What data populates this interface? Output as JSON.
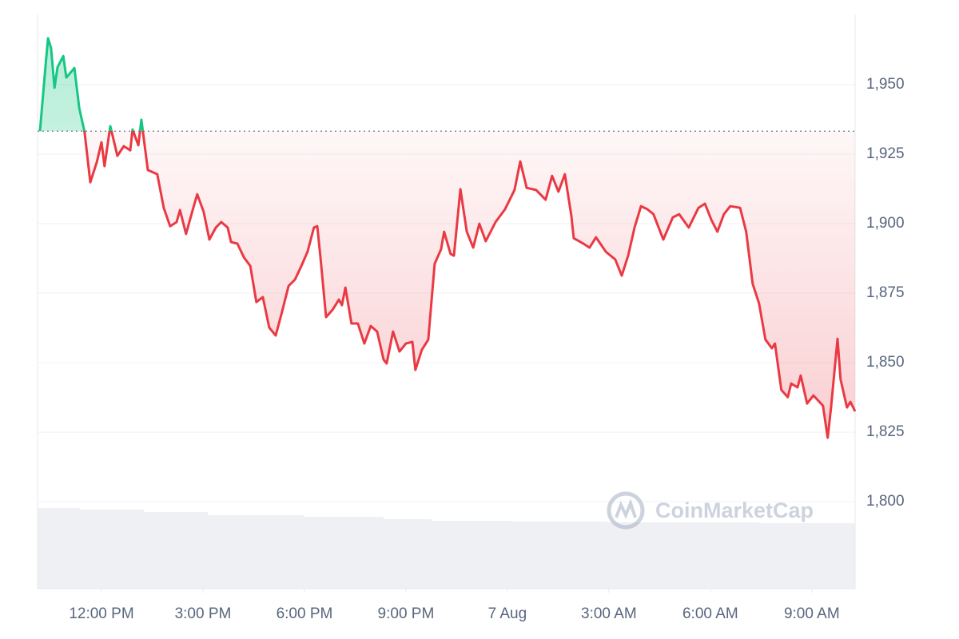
{
  "chart_data": {
    "type": "line",
    "watermark": "CoinMarketCap",
    "up_color": "#16c784",
    "down_color": "#ea3943",
    "baseline": 1933.3,
    "grid": true,
    "xlim": [
      -1.89,
      22.28
    ],
    "xticks": [
      {
        "value": 0,
        "label": "12:00 PM"
      },
      {
        "value": 3,
        "label": "3:00 PM"
      },
      {
        "value": 6,
        "label": "6:00 PM"
      },
      {
        "value": 9,
        "label": "9:00 PM"
      },
      {
        "value": 12,
        "label": "7 Aug"
      },
      {
        "value": 15,
        "label": "3:00 AM"
      },
      {
        "value": 18,
        "label": "6:00 AM"
      },
      {
        "value": 21,
        "label": "9:00 AM"
      }
    ],
    "ylim": [
      1768.7,
      1975.3
    ],
    "yticks": [
      {
        "value": 1800,
        "label": "1,800"
      },
      {
        "value": 1825,
        "label": "1,825"
      },
      {
        "value": 1850,
        "label": "1,850"
      },
      {
        "value": 1875,
        "label": "1,875"
      },
      {
        "value": 1900,
        "label": "1,900"
      },
      {
        "value": 1925,
        "label": "1,925"
      },
      {
        "value": 1950,
        "label": "1,950"
      }
    ],
    "x": [
      -1.82,
      -1.65,
      -1.58,
      -1.49,
      -1.39,
      -1.3,
      -1.13,
      -1.04,
      -0.8,
      -0.66,
      -0.5,
      -0.33,
      -0.14,
      0,
      0.09,
      0.26,
      0.47,
      0.66,
      0.85,
      0.92,
      1.09,
      1.18,
      1.37,
      1.65,
      1.84,
      2.03,
      2.22,
      2.32,
      2.5,
      2.69,
      2.83,
      3.02,
      3.19,
      3.38,
      3.54,
      3.73,
      3.83,
      4.02,
      4.21,
      4.4,
      4.58,
      4.77,
      4.96,
      5.15,
      5.34,
      5.53,
      5.72,
      5.91,
      6.09,
      6.28,
      6.38,
      6.47,
      6.64,
      6.83,
      7.02,
      7.11,
      7.21,
      7.39,
      7.58,
      7.77,
      7.96,
      8.15,
      8.34,
      8.43,
      8.62,
      8.81,
      9.0,
      9.19,
      9.28,
      9.47,
      9.66,
      9.85,
      10.04,
      10.13,
      10.32,
      10.42,
      10.61,
      10.8,
      10.99,
      11.17,
      11.36,
      11.65,
      11.93,
      12.21,
      12.38,
      12.57,
      12.85,
      13.13,
      13.32,
      13.51,
      13.7,
      13.89,
      13.96,
      14.25,
      14.43,
      14.62,
      14.91,
      15.19,
      15.38,
      15.57,
      15.76,
      15.95,
      16.14,
      16.32,
      16.61,
      16.89,
      17.08,
      17.36,
      17.65,
      17.84,
      18.03,
      18.21,
      18.4,
      18.59,
      18.88,
      19.06,
      19.25,
      19.44,
      19.63,
      19.82,
      19.91,
      20.1,
      20.29,
      20.39,
      20.58,
      20.67,
      20.86,
      21.05,
      21.33,
      21.47,
      21.57,
      21.76,
      21.85,
      22.04,
      22.14,
      22.28
    ],
    "values": [
      1933.3,
      1957.5,
      1966.7,
      1963.2,
      1948.9,
      1956.3,
      1960.3,
      1952.6,
      1956.0,
      1941.7,
      1933.0,
      1914.9,
      1922.1,
      1929.3,
      1920.7,
      1935.1,
      1924.4,
      1927.9,
      1926.4,
      1933.9,
      1928.2,
      1937.4,
      1919.3,
      1917.8,
      1905.7,
      1899.1,
      1900.6,
      1904.9,
      1896.3,
      1904.6,
      1910.6,
      1904.3,
      1894.3,
      1898.6,
      1900.6,
      1898.6,
      1893.4,
      1892.8,
      1887.9,
      1884.8,
      1871.8,
      1873.6,
      1862.6,
      1859.8,
      1868.4,
      1877.6,
      1879.9,
      1884.8,
      1889.9,
      1898.6,
      1899.1,
      1888.5,
      1866.4,
      1869.0,
      1872.7,
      1870.7,
      1877.0,
      1864.1,
      1864.1,
      1856.9,
      1863.2,
      1861.2,
      1851.1,
      1849.7,
      1861.2,
      1854.0,
      1856.9,
      1857.5,
      1847.4,
      1854.6,
      1858.3,
      1885.6,
      1890.8,
      1897.1,
      1889.1,
      1888.5,
      1912.4,
      1897.1,
      1891.4,
      1900.0,
      1893.7,
      1900.6,
      1905.2,
      1912.1,
      1922.4,
      1912.9,
      1912.1,
      1908.6,
      1917.2,
      1911.5,
      1917.8,
      1902.9,
      1894.8,
      1892.8,
      1891.4,
      1895.1,
      1889.9,
      1887.1,
      1881.3,
      1888.5,
      1898.6,
      1906.3,
      1905.2,
      1903.4,
      1894.3,
      1902.3,
      1903.4,
      1898.6,
      1905.7,
      1907.2,
      1901.4,
      1897.1,
      1903.4,
      1906.3,
      1905.7,
      1897.1,
      1878.4,
      1871.3,
      1858.3,
      1855.2,
      1856.9,
      1840.2,
      1837.6,
      1842.5,
      1841.1,
      1845.4,
      1835.3,
      1838.2,
      1834.5,
      1823.0,
      1833.9,
      1858.6,
      1844.0,
      1833.9,
      1835.9,
      1832.5
    ]
  }
}
